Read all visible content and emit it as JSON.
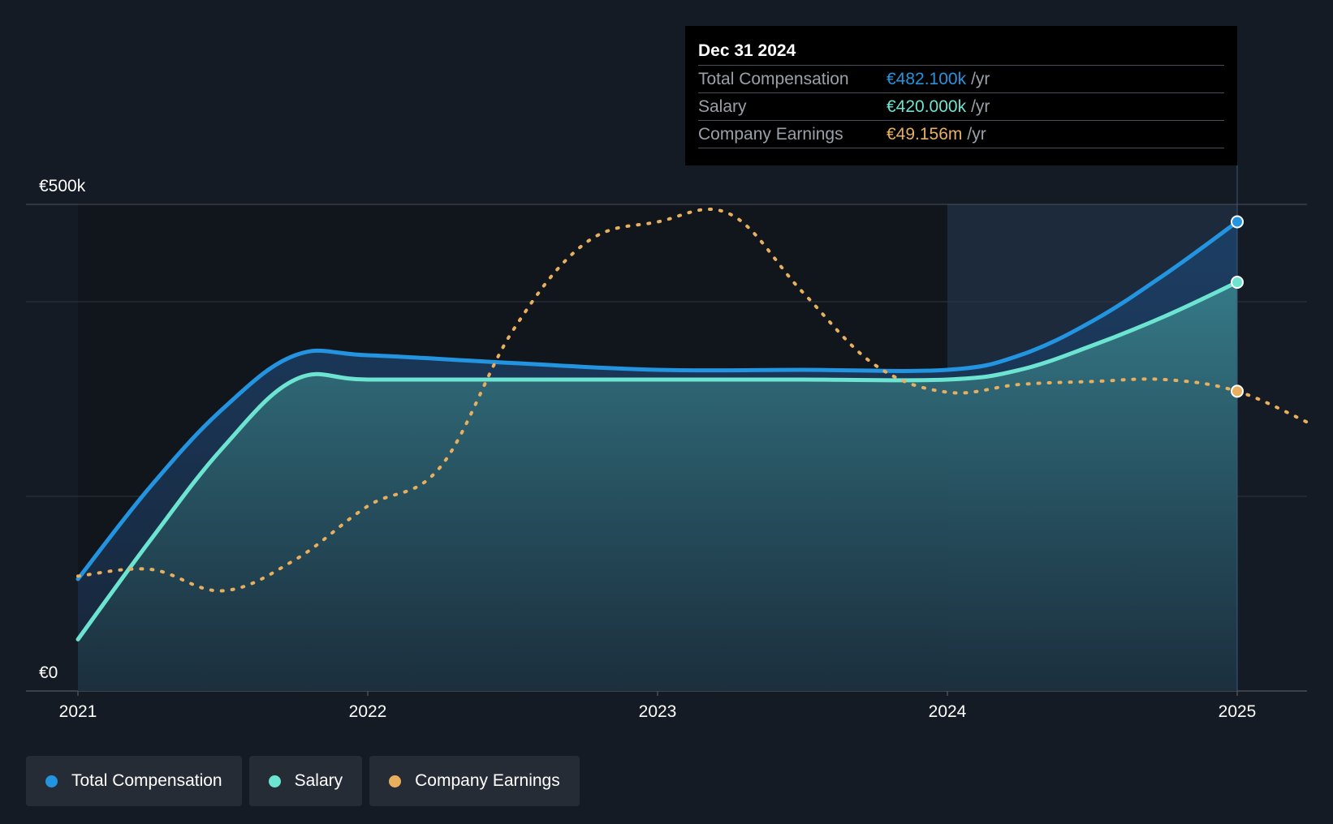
{
  "chart_data": {
    "type": "area",
    "title": "",
    "xlabel": "",
    "ylabel": "",
    "x_ticks": [
      "2021",
      "2022",
      "2023",
      "2024",
      "2025"
    ],
    "y_ticks": [
      {
        "value": 0,
        "label": "€0"
      },
      {
        "value": 500,
        "label": "€500k"
      }
    ],
    "ylim": [
      0,
      500
    ],
    "xlim": [
      2021.0,
      2025.25
    ],
    "highlight_range": [
      2024.0,
      2025.0
    ],
    "series": [
      {
        "name": "Total Compensation",
        "color": "#2394df",
        "fill": true,
        "dashed": false,
        "points": [
          [
            2021.0,
            115
          ],
          [
            2021.25,
            210
          ],
          [
            2021.5,
            290
          ],
          [
            2021.75,
            345
          ],
          [
            2022.0,
            345
          ],
          [
            2022.5,
            337
          ],
          [
            2023.0,
            330
          ],
          [
            2023.5,
            330
          ],
          [
            2024.0,
            330
          ],
          [
            2024.25,
            345
          ],
          [
            2024.5,
            380
          ],
          [
            2024.75,
            428
          ],
          [
            2025.0,
            482.1
          ]
        ]
      },
      {
        "name": "Salary",
        "color": "#6de4d1",
        "fill": true,
        "dashed": false,
        "points": [
          [
            2021.0,
            53
          ],
          [
            2021.25,
            155
          ],
          [
            2021.5,
            250
          ],
          [
            2021.75,
            320
          ],
          [
            2022.0,
            320
          ],
          [
            2022.5,
            320
          ],
          [
            2023.0,
            320
          ],
          [
            2023.5,
            320
          ],
          [
            2024.0,
            320
          ],
          [
            2024.25,
            330
          ],
          [
            2024.5,
            355
          ],
          [
            2024.75,
            385
          ],
          [
            2025.0,
            420
          ]
        ]
      },
      {
        "name": "Company Earnings",
        "color": "#e8af5e",
        "fill": false,
        "dashed": true,
        "points": [
          [
            2021.0,
            118
          ],
          [
            2021.25,
            125
          ],
          [
            2021.5,
            103
          ],
          [
            2021.75,
            135
          ],
          [
            2022.0,
            190
          ],
          [
            2022.25,
            230
          ],
          [
            2022.5,
            370
          ],
          [
            2022.75,
            460
          ],
          [
            2023.0,
            482
          ],
          [
            2023.25,
            490
          ],
          [
            2023.5,
            410
          ],
          [
            2023.75,
            335
          ],
          [
            2024.0,
            307
          ],
          [
            2024.25,
            315
          ],
          [
            2024.5,
            318
          ],
          [
            2024.75,
            320
          ],
          [
            2025.0,
            308
          ],
          [
            2025.25,
            275
          ]
        ]
      }
    ]
  },
  "tooltip": {
    "date": "Dec 31 2024",
    "rows": [
      {
        "name": "Total Compensation",
        "value": "€482.100k",
        "unit": "/yr",
        "color": "#2394df"
      },
      {
        "name": "Salary",
        "value": "€420.000k",
        "unit": "/yr",
        "color": "#6de4d1"
      },
      {
        "name": "Company Earnings",
        "value": "€49.156m",
        "unit": "/yr",
        "color": "#e8af5e"
      }
    ]
  },
  "legend": [
    {
      "label": "Total Compensation",
      "color": "#2394df"
    },
    {
      "label": "Salary",
      "color": "#6de4d1"
    },
    {
      "label": "Company Earnings",
      "color": "#e8af5e"
    }
  ]
}
